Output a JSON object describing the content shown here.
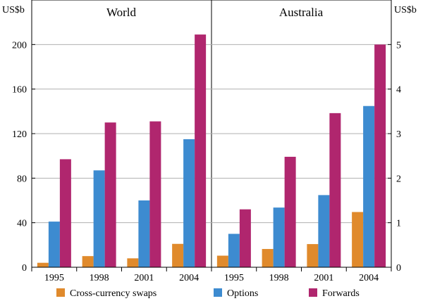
{
  "colors": {
    "cross_currency_swaps": "#e08a2c",
    "options": "#3d8bd0",
    "forwards": "#b0266e",
    "grid": "#b0b0b0",
    "axis": "#000000"
  },
  "chart_data": [
    {
      "type": "bar",
      "title": "World",
      "ylabel": "US$b",
      "categories": [
        "1995",
        "1998",
        "2001",
        "2004"
      ],
      "ylim": [
        0,
        240
      ],
      "yticks": [
        0,
        40,
        80,
        120,
        160,
        200
      ],
      "series": [
        {
          "name": "Cross-currency swaps",
          "values": [
            4,
            10,
            8,
            21
          ]
        },
        {
          "name": "Options",
          "values": [
            41,
            87,
            60,
            115
          ]
        },
        {
          "name": "Forwards",
          "values": [
            97,
            130,
            131,
            209
          ]
        }
      ]
    },
    {
      "type": "bar",
      "title": "Australia",
      "ylabel": "US$b",
      "categories": [
        "1995",
        "1998",
        "2001",
        "2004"
      ],
      "ylim": [
        0,
        6
      ],
      "yticks": [
        0,
        1,
        2,
        3,
        4,
        5
      ],
      "series": [
        {
          "name": "Cross-currency swaps",
          "values": [
            0.26,
            0.41,
            0.52,
            1.24
          ]
        },
        {
          "name": "Options",
          "values": [
            0.75,
            1.34,
            1.62,
            3.62
          ]
        },
        {
          "name": "Forwards",
          "values": [
            1.3,
            2.48,
            3.46,
            5.0
          ]
        }
      ]
    }
  ],
  "legend": [
    {
      "label": "Cross-currency swaps",
      "color_key": "cross_currency_swaps"
    },
    {
      "label": "Options",
      "color_key": "options"
    },
    {
      "label": "Forwards",
      "color_key": "forwards"
    }
  ]
}
